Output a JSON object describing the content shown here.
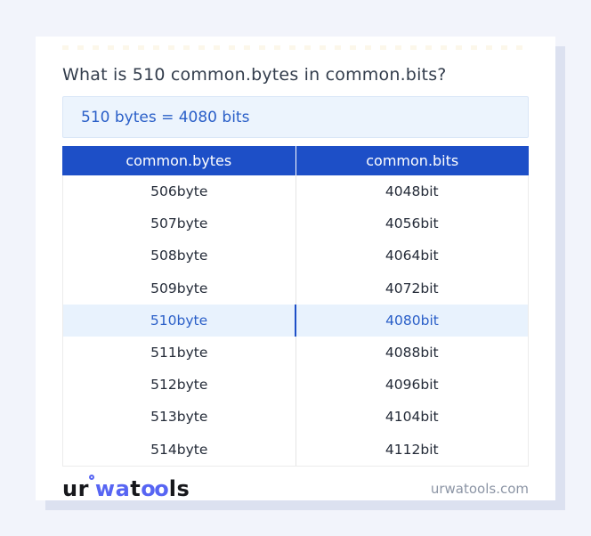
{
  "page": {
    "title": "What is 510 common.bytes in common.bits?",
    "result": "510 bytes = 4080 bits"
  },
  "table": {
    "headers": [
      "common.bytes",
      "common.bits"
    ],
    "rows": [
      {
        "bytes": "506byte",
        "bits": "4048bit",
        "highlight": false
      },
      {
        "bytes": "507byte",
        "bits": "4056bit",
        "highlight": false
      },
      {
        "bytes": "508byte",
        "bits": "4064bit",
        "highlight": false
      },
      {
        "bytes": "509byte",
        "bits": "4072bit",
        "highlight": false
      },
      {
        "bytes": "510byte",
        "bits": "4080bit",
        "highlight": true
      },
      {
        "bytes": "511byte",
        "bits": "4088bit",
        "highlight": false
      },
      {
        "bytes": "512byte",
        "bits": "4096bit",
        "highlight": false
      },
      {
        "bytes": "513byte",
        "bits": "4104bit",
        "highlight": false
      },
      {
        "bytes": "514byte",
        "bits": "4112bit",
        "highlight": false
      }
    ]
  },
  "footer": {
    "logo": {
      "part_ur": "ur",
      "part_wa": "wa",
      "part_t": "t",
      "part_oo": "oo",
      "part_ls": "ls"
    },
    "domain": "urwatools.com"
  },
  "colors": {
    "page_background": "#f2f4fb",
    "card_background": "#ffffff",
    "card_shadow": "#dce1f0",
    "header_blue": "#1d4fc7",
    "link_blue": "#2a5fc8",
    "highlight_row_background": "#e8f2fd",
    "result_box_background": "#ecf4fd",
    "logo_blue": "#5765f3",
    "body_text": "#242b38",
    "muted_text": "#8c95a5"
  }
}
